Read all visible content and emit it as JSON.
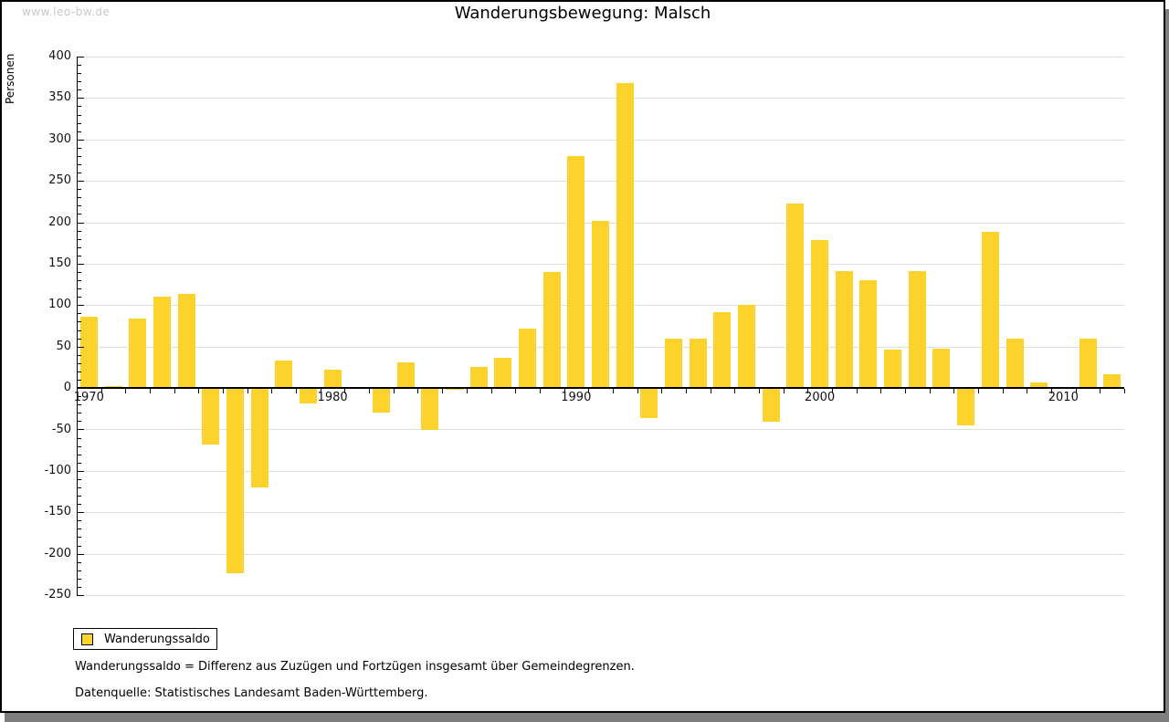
{
  "watermark": "www.leo-bw.de",
  "title": "Wanderungsbewegung: Malsch",
  "legend": {
    "label": "Wanderungssaldo"
  },
  "footnotes": [
    "Wanderungssaldo = Differenz aus Zuzügen und Fortzügen insgesamt über Gemeindegrenzen.",
    "Datenquelle: Statistisches Landesamt Baden-Württemberg."
  ],
  "colors": {
    "bar": "#fcd32c",
    "grid": "#dedede",
    "axis": "#000000",
    "frame_shadow": "#7f7f7f",
    "watermark": "#c5c9cb"
  },
  "chart_data": {
    "type": "bar",
    "title": "Wanderungsbewegung: Malsch",
    "xlabel": "",
    "ylabel": "Personen",
    "series_name": "Wanderungssaldo",
    "ylim": [
      -250,
      400
    ],
    "ytick_step": 50,
    "ytick_minor_step": 10,
    "yticks": [
      400,
      350,
      300,
      250,
      200,
      150,
      100,
      50,
      0,
      -50,
      -100,
      -150,
      -200,
      -250
    ],
    "grid": true,
    "legend_position": "bottom-left",
    "x_labeled_ticks": [
      1970,
      1980,
      1990,
      2000,
      2010
    ],
    "categories": [
      1970,
      1971,
      1972,
      1973,
      1974,
      1975,
      1976,
      1977,
      1978,
      1979,
      1980,
      1981,
      1982,
      1983,
      1984,
      1985,
      1986,
      1987,
      1988,
      1989,
      1990,
      1991,
      1992,
      1993,
      1994,
      1995,
      1996,
      1997,
      1998,
      1999,
      2000,
      2001,
      2002,
      2003,
      2004,
      2005,
      2006,
      2007,
      2008,
      2009,
      2010,
      2011,
      2012
    ],
    "values": [
      86,
      2,
      84,
      110,
      113,
      -68,
      -224,
      -120,
      33,
      -19,
      22,
      1,
      -30,
      31,
      -51,
      -2,
      25,
      36,
      72,
      140,
      280,
      202,
      368,
      -36,
      60,
      60,
      91,
      100,
      -41,
      222,
      179,
      141,
      130,
      46,
      141,
      47,
      -45,
      188,
      59,
      7,
      0,
      59,
      17
    ]
  }
}
